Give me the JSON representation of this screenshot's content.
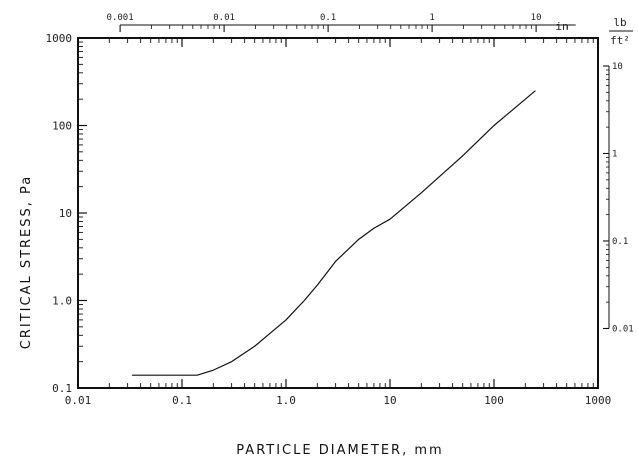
{
  "chart_data": {
    "type": "line",
    "title": "",
    "xlabel": "PARTICLE DIAMETER, mm",
    "ylabel": "CRITICAL STRESS, Pa",
    "x_scale": "log",
    "y_scale": "log",
    "xlim": [
      0.01,
      1000
    ],
    "ylim": [
      0.1,
      1000
    ],
    "grid": false,
    "x_ticks": [
      "0.01",
      "0.1",
      "1.0",
      "10",
      "100",
      "1000"
    ],
    "y_ticks": [
      "0.1",
      "1.0",
      "10",
      "100",
      "1000"
    ],
    "top_axis": {
      "unit": "in",
      "ticks": [
        {
          "label": "0.001",
          "value": 0.001
        },
        {
          "label": "0.01",
          "value": 0.01
        },
        {
          "label": "0.1",
          "value": 0.1
        },
        {
          "label": "1",
          "value": 1
        },
        {
          "label": "10",
          "value": 10
        }
      ]
    },
    "right_axis": {
      "unit_numerator": "lb",
      "unit_denominator": "ft²",
      "ticks": [
        {
          "label": "10",
          "value": 10
        },
        {
          "label": "1",
          "value": 1
        },
        {
          "label": "0.1",
          "value": 0.1
        },
        {
          "label": "0.01",
          "value": 0.01
        }
      ]
    },
    "series": [
      {
        "x": [
          0.033,
          0.06,
          0.1,
          0.14,
          0.2,
          0.3,
          0.5,
          0.7,
          1.0,
          1.5,
          2.0,
          3.0,
          5.0,
          7.0,
          10,
          20,
          50,
          100,
          250
        ],
        "y": [
          0.14,
          0.14,
          0.14,
          0.14,
          0.16,
          0.2,
          0.3,
          0.42,
          0.6,
          1.0,
          1.5,
          2.8,
          5.0,
          6.7,
          8.5,
          17,
          45,
          100,
          250
        ]
      }
    ]
  }
}
